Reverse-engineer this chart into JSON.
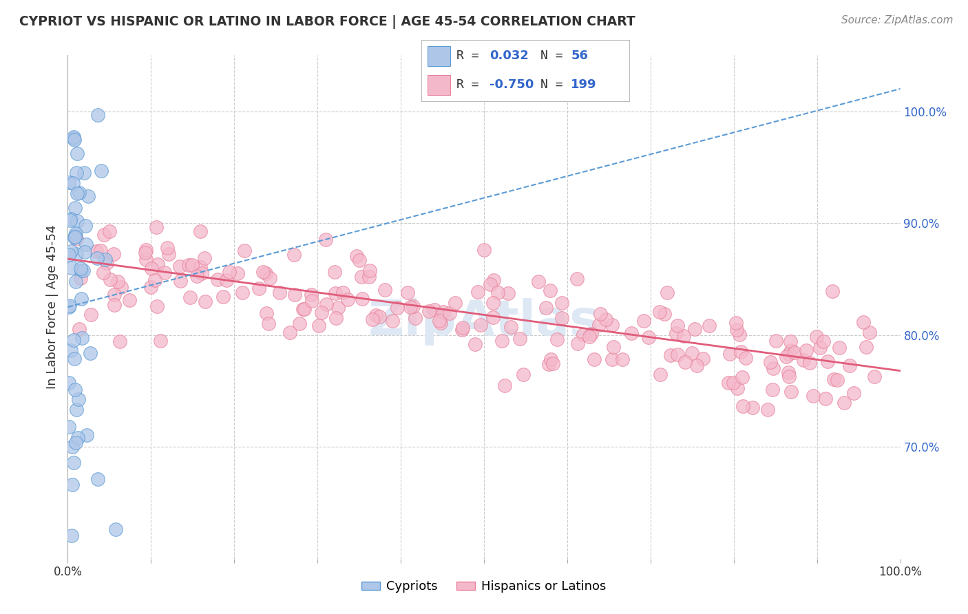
{
  "title": "CYPRIOT VS HISPANIC OR LATINO IN LABOR FORCE | AGE 45-54 CORRELATION CHART",
  "source": "Source: ZipAtlas.com",
  "ylabel": "In Labor Force | Age 45-54",
  "xlim": [
    0.0,
    1.0
  ],
  "ylim": [
    0.6,
    1.05
  ],
  "cypriot_R": 0.032,
  "cypriot_N": 56,
  "hispanic_R": -0.75,
  "hispanic_N": 199,
  "cypriot_color": "#aec6e8",
  "cypriot_edge_color": "#5b9bd5",
  "cypriot_line_color": "#5b9bd5",
  "hispanic_color": "#f4b8cb",
  "hispanic_edge_color": "#e8829a",
  "hispanic_line_color": "#e05c7a",
  "background_color": "#ffffff",
  "grid_color": "#cccccc",
  "watermark_color": "#dde8f4",
  "hispanic_line_x_start": 0.0,
  "hispanic_line_x_end": 1.0,
  "hispanic_line_y_start": 0.868,
  "hispanic_line_y_end": 0.768,
  "cypriot_line_x_start": 0.0,
  "cypriot_line_x_end": 1.0,
  "cypriot_line_y_start": 0.825,
  "cypriot_line_y_end": 1.02,
  "legend_R_color": "#3366cc",
  "legend_N_color": "#3366cc",
  "right_tick_color": "#3366cc"
}
